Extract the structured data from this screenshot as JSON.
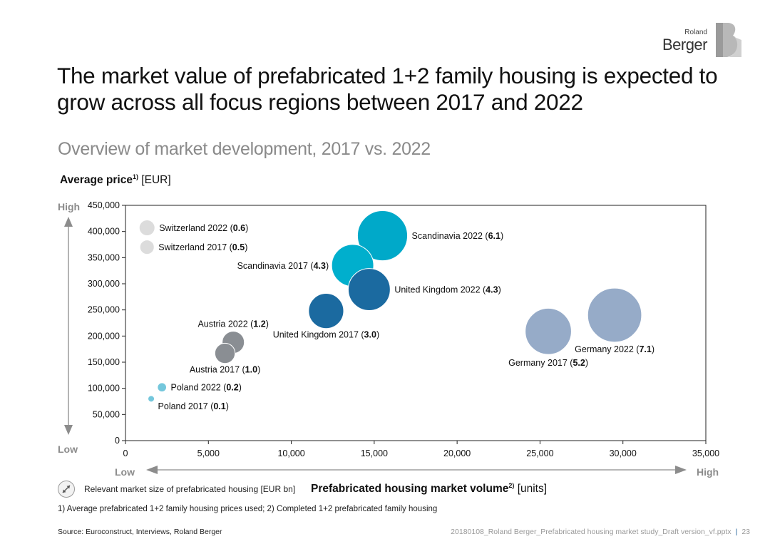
{
  "brand": {
    "small": "Roland",
    "big": "Berger",
    "mark": "B"
  },
  "title": "The market value of prefabricated 1+2 family housing is expected to grow across all focus regions between 2017 and 2022",
  "subtitle": "Overview of market development, 2017 vs. 2022",
  "y_axis": {
    "label_bold": "Average price",
    "label_sup": "1)",
    "label_unit": "[EUR]",
    "high": "High",
    "low": "Low"
  },
  "x_axis": {
    "label_bold": "Prefabricated housing market volume",
    "label_sup": "2)",
    "label_unit": "[units]",
    "low": "Low",
    "high": "High"
  },
  "legend_text": "Relevant market size of prefabricated housing [EUR bn]",
  "footnote": "1) Average prefabricated 1+2 family housing prices used; 2) Completed 1+2 prefabricated family housing",
  "source": "Source: Euroconstruct, Interviews, Roland Berger",
  "file_name": "20180108_Roland Berger_Prefabricated housing market study_Draft version_vf.pptx",
  "page_number": "23",
  "chart_data": {
    "type": "scatter",
    "title": "",
    "xlabel": "Prefabricated housing market volume [units]",
    "ylabel": "Average price [EUR]",
    "xlim": [
      0,
      35000
    ],
    "ylim": [
      0,
      450000
    ],
    "x_ticks": [
      0,
      5000,
      10000,
      15000,
      20000,
      25000,
      30000,
      35000
    ],
    "y_ticks": [
      0,
      50000,
      100000,
      150000,
      200000,
      250000,
      300000,
      350000,
      400000,
      450000
    ],
    "x_tick_labels": [
      "0",
      "5,000",
      "10,000",
      "15,000",
      "20,000",
      "25,000",
      "30,000",
      "35,000"
    ],
    "y_tick_labels": [
      "0",
      "50,000",
      "100,000",
      "150,000",
      "200,000",
      "250,000",
      "300,000",
      "350,000",
      "400,000",
      "450,000"
    ],
    "size_unit": "EUR bn",
    "points": [
      {
        "name": "Switzerland 2022",
        "x": 1300,
        "y": 407000,
        "size": 0.6,
        "color": "#dcdcdc",
        "label_pos": "right"
      },
      {
        "name": "Switzerland 2017",
        "x": 1300,
        "y": 370000,
        "size": 0.5,
        "color": "#dcdcdc",
        "label_pos": "right"
      },
      {
        "name": "Scandinavia 2022",
        "x": 15500,
        "y": 392000,
        "size": 6.1,
        "color": "#00a9c9",
        "label_pos": "right"
      },
      {
        "name": "Scandinavia 2017",
        "x": 13700,
        "y": 335000,
        "size": 4.3,
        "color": "#00afcd",
        "label_pos": "left"
      },
      {
        "name": "United Kingdom 2022",
        "x": 14700,
        "y": 289000,
        "size": 4.3,
        "color": "#1b6aa0",
        "label_pos": "right"
      },
      {
        "name": "United Kingdom 2017",
        "x": 12100,
        "y": 248000,
        "size": 3.0,
        "color": "#1b6aa0",
        "label_pos": "below"
      },
      {
        "name": "Austria 2022",
        "x": 6500,
        "y": 188000,
        "size": 1.2,
        "color": "#8a8e93",
        "label_pos": "above"
      },
      {
        "name": "Austria 2017",
        "x": 6000,
        "y": 167000,
        "size": 1.0,
        "color": "#8a8e93",
        "label_pos": "below"
      },
      {
        "name": "Poland 2022",
        "x": 2200,
        "y": 102000,
        "size": 0.2,
        "color": "#74c7dc",
        "label_pos": "right"
      },
      {
        "name": "Poland 2017",
        "x": 1550,
        "y": 80000,
        "size": 0.1,
        "color": "#74c7dc",
        "label_pos": "below-right"
      },
      {
        "name": "Germany 2017",
        "x": 25500,
        "y": 209000,
        "size": 5.2,
        "color": "#96abc8",
        "label_pos": "below"
      },
      {
        "name": "Germany 2022",
        "x": 29500,
        "y": 240000,
        "size": 7.1,
        "color": "#96abc8",
        "label_pos": "below"
      }
    ]
  }
}
